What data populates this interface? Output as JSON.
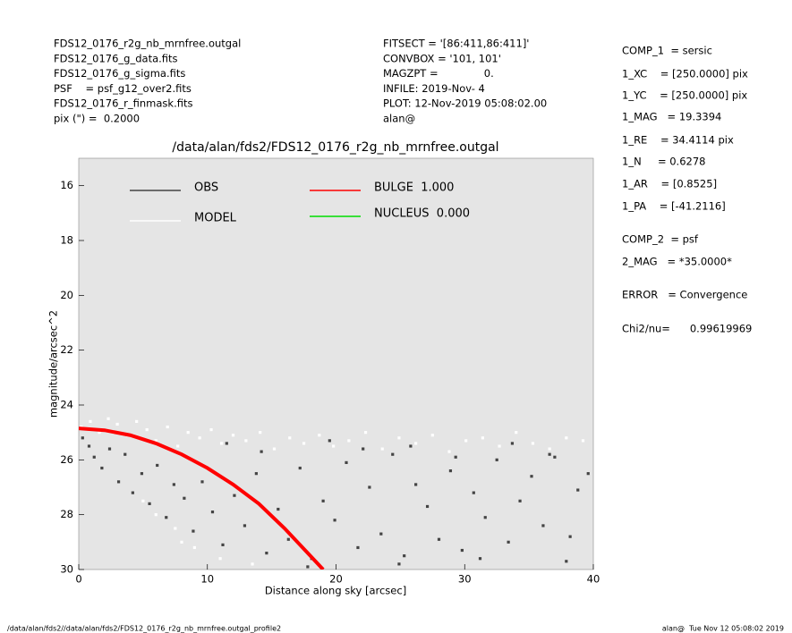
{
  "header_left": [
    "FDS12_0176_r2g_nb_mrnfree.outgal",
    "FDS12_0176_g_data.fits",
    "FDS12_0176_g_sigma.fits",
    "PSF    = psf_g12_over2.fits",
    "FDS12_0176_r_finmask.fits",
    "pix (\") =  0.2000"
  ],
  "header_middle": [
    "FITSECT = '[86:411,86:411]'",
    "CONVBOX = '101, 101'",
    "MAGZPT =              0.",
    "INFILE: 2019-Nov- 4",
    "PLOT: 12-Nov-2019 05:08:02.00",
    "alan@"
  ],
  "fit_results": [
    "COMP_1  = sersic",
    "1_XC    = [250.0000] pix",
    "1_YC    = [250.0000] pix",
    "1_MAG   = 19.3394",
    "1_RE    = 34.4114 pix",
    "1_N     = 0.6278",
    "1_AR    = [0.8525]",
    "1_PA    = [-41.2116]",
    "COMP_2  = psf",
    "2_MAG   = *35.0000*",
    "ERROR   = Convergence",
    "Chi2/nu=      0.99619969"
  ],
  "footer_left": "/data/alan/fds2//data/alan/fds2/FDS12_0176_r2g_nb_mrnfree.outgal_profile2",
  "footer_right": "alan@  Tue Nov 12 05:08:02 2019",
  "chart_data": {
    "type": "scatter",
    "title": "/data/alan/fds2/FDS12_0176_r2g_nb_mrnfree.outgal",
    "x_label": "Distance along sky [arcsec]",
    "y_label": "magnitude/arcsec^2",
    "xlim": [
      0,
      40
    ],
    "xticks": [
      0,
      10,
      20,
      30,
      40
    ],
    "ylim": [
      30,
      15
    ],
    "yticks": [
      16,
      18,
      20,
      22,
      24,
      26,
      28,
      30
    ],
    "background": "#e5e5e5",
    "series": [
      {
        "name": "OBS",
        "color": "#444444",
        "style": "points",
        "x": [
          0.3,
          0.8,
          1.2,
          1.8,
          2.4,
          3.1,
          3.6,
          4.2,
          4.9,
          5.5,
          6.1,
          6.8,
          7.4,
          8.2,
          8.9,
          9.6,
          10.4,
          11.2,
          12.1,
          12.9,
          13.8,
          14.6,
          15.5,
          16.3,
          17.2,
          18.1,
          19.0,
          19.9,
          20.8,
          21.7,
          22.6,
          23.5,
          24.4,
          25.3,
          26.2,
          27.1,
          28.0,
          28.9,
          29.8,
          30.7,
          31.6,
          32.5,
          33.4,
          34.3,
          35.2,
          36.1,
          37.0,
          37.9,
          38.8,
          39.6,
          11.5,
          14.2,
          19.5,
          22.1,
          25.8,
          29.3,
          33.7,
          36.6,
          17.8,
          24.9,
          31.2,
          38.2
        ],
        "values": [
          25.2,
          25.5,
          25.9,
          26.3,
          25.6,
          26.8,
          25.8,
          27.2,
          26.5,
          27.6,
          26.2,
          28.1,
          26.9,
          27.4,
          28.6,
          26.8,
          27.9,
          29.1,
          27.3,
          28.4,
          26.5,
          29.4,
          27.8,
          28.9,
          26.3,
          29.6,
          27.5,
          28.2,
          26.1,
          29.2,
          27.0,
          28.7,
          25.8,
          29.5,
          26.9,
          27.7,
          28.9,
          26.4,
          29.3,
          27.2,
          28.1,
          26.0,
          29.0,
          27.5,
          26.6,
          28.4,
          25.9,
          29.7,
          27.1,
          26.5,
          25.4,
          25.7,
          25.3,
          25.6,
          25.5,
          25.9,
          25.4,
          25.8,
          29.9,
          29.8,
          29.6,
          28.8
        ]
      },
      {
        "name": "MODEL",
        "color": "#ffffff",
        "style": "points",
        "x": [
          0.2,
          0.9,
          1.6,
          2.3,
          3.0,
          3.8,
          4.5,
          5.3,
          6.0,
          6.9,
          7.7,
          8.5,
          9.4,
          10.3,
          11.1,
          12.0,
          13.0,
          14.1,
          15.2,
          16.4,
          17.5,
          18.7,
          19.8,
          21.0,
          22.3,
          23.6,
          24.9,
          26.2,
          27.5,
          28.8,
          30.1,
          31.4,
          32.7,
          34.0,
          35.3,
          36.6,
          37.9,
          39.2,
          5.0,
          7.5,
          9.0,
          11.0,
          13.5,
          6.0,
          8.0
        ],
        "values": [
          24.8,
          24.6,
          25.0,
          24.5,
          24.7,
          25.1,
          24.6,
          24.9,
          25.3,
          24.8,
          25.5,
          25.0,
          25.2,
          24.9,
          25.4,
          25.1,
          25.3,
          25.0,
          25.6,
          25.2,
          25.4,
          25.1,
          25.5,
          25.3,
          25.0,
          25.6,
          25.2,
          25.4,
          25.1,
          25.7,
          25.3,
          25.2,
          25.5,
          25.0,
          25.4,
          25.6,
          25.2,
          25.3,
          27.5,
          28.5,
          29.2,
          29.6,
          29.8,
          28.0,
          29.0
        ]
      },
      {
        "name": "BULGE  1.000",
        "color": "#ff0000",
        "style": "line",
        "x": [
          0,
          2,
          4,
          6,
          8,
          10,
          12,
          14,
          16,
          18,
          19
        ],
        "values": [
          24.85,
          24.92,
          25.1,
          25.4,
          25.8,
          26.3,
          26.9,
          27.6,
          28.5,
          29.5,
          30.0
        ]
      },
      {
        "name": "NUCLEUS  0.000",
        "color": "#00dd00",
        "style": "line",
        "x": [],
        "values": []
      }
    ]
  }
}
